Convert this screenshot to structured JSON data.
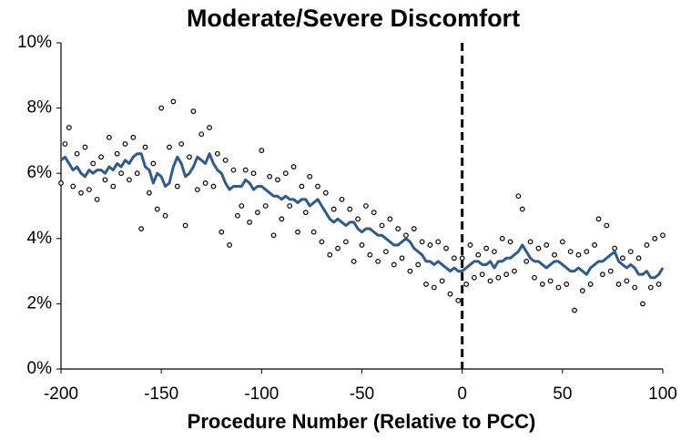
{
  "chart_data": {
    "type": "scatter",
    "title": "Moderate/Severe Discomfort",
    "x_label": "Procedure Number (Relative to PCC)",
    "xlim": [
      -200,
      100
    ],
    "xticks": [
      -200,
      -150,
      -100,
      -50,
      0,
      50,
      100
    ],
    "ylim": [
      0,
      10
    ],
    "yticks": [
      {
        "value": 0,
        "label": "0%"
      },
      {
        "value": 2,
        "label": "2%"
      },
      {
        "value": 4,
        "label": "4%"
      },
      {
        "value": 6,
        "label": "6%"
      },
      {
        "value": 8,
        "label": "8%"
      },
      {
        "value": 10,
        "label": "10%"
      }
    ],
    "grid": false,
    "reference_line_x": 0,
    "x": [
      -200,
      -198,
      -196,
      -194,
      -192,
      -190,
      -188,
      -186,
      -184,
      -182,
      -180,
      -178,
      -176,
      -174,
      -172,
      -170,
      -168,
      -166,
      -164,
      -162,
      -160,
      -158,
      -156,
      -154,
      -152,
      -150,
      -148,
      -146,
      -144,
      -142,
      -140,
      -138,
      -136,
      -134,
      -132,
      -130,
      -128,
      -126,
      -124,
      -122,
      -120,
      -118,
      -116,
      -114,
      -112,
      -110,
      -108,
      -106,
      -104,
      -102,
      -100,
      -98,
      -96,
      -94,
      -92,
      -90,
      -88,
      -86,
      -84,
      -82,
      -80,
      -78,
      -76,
      -74,
      -72,
      -70,
      -68,
      -66,
      -64,
      -62,
      -60,
      -58,
      -56,
      -54,
      -52,
      -50,
      -48,
      -46,
      -44,
      -42,
      -40,
      -38,
      -36,
      -34,
      -32,
      -30,
      -28,
      -26,
      -24,
      -22,
      -20,
      -18,
      -16,
      -14,
      -12,
      -10,
      -8,
      -6,
      -4,
      -2,
      0,
      2,
      4,
      6,
      8,
      10,
      12,
      14,
      16,
      18,
      20,
      22,
      24,
      26,
      28,
      30,
      32,
      34,
      36,
      38,
      40,
      42,
      44,
      46,
      48,
      50,
      52,
      54,
      56,
      58,
      60,
      62,
      64,
      66,
      68,
      70,
      72,
      74,
      76,
      78,
      80,
      82,
      84,
      86,
      88,
      90,
      92,
      94,
      96,
      98,
      100
    ],
    "series": [
      {
        "kind": "scatter",
        "color": "#000000",
        "values": [
          5.7,
          6.9,
          7.4,
          5.6,
          6.6,
          5.4,
          6.8,
          5.5,
          6.3,
          5.2,
          6.5,
          5.8,
          7.1,
          5.6,
          6.6,
          6.0,
          6.9,
          5.8,
          7.1,
          6.0,
          4.3,
          6.8,
          5.4,
          6.3,
          4.9,
          8.0,
          4.7,
          6.8,
          8.2,
          5.6,
          6.9,
          4.4,
          6.5,
          7.9,
          5.5,
          7.2,
          5.7,
          7.4,
          5.6,
          6.6,
          4.2,
          6.4,
          3.8,
          6.1,
          4.7,
          5.0,
          6.1,
          4.5,
          6.0,
          4.8,
          6.7,
          5.0,
          5.9,
          4.1,
          5.8,
          4.6,
          6.0,
          5.0,
          6.2,
          4.2,
          5.6,
          4.8,
          5.9,
          4.2,
          5.6,
          3.9,
          5.4,
          3.5,
          4.9,
          3.7,
          5.2,
          3.9,
          4.9,
          3.3,
          4.6,
          3.8,
          5.0,
          3.5,
          4.8,
          3.3,
          4.4,
          3.6,
          4.6,
          3.2,
          4.3,
          3.4,
          4.1,
          3.0,
          4.3,
          3.2,
          3.9,
          2.6,
          3.8,
          2.5,
          3.9,
          2.7,
          3.7,
          2.3,
          3.4,
          2.1,
          3.4,
          2.6,
          3.8,
          2.8,
          3.5,
          2.9,
          3.7,
          2.7,
          3.6,
          2.8,
          4.0,
          2.9,
          3.9,
          3.0,
          5.3,
          4.9,
          3.3,
          3.9,
          2.8,
          3.7,
          2.6,
          3.8,
          2.7,
          3.5,
          2.5,
          3.9,
          2.6,
          3.6,
          1.8,
          3.5,
          2.4,
          3.6,
          2.6,
          3.8,
          4.6,
          2.9,
          4.4,
          3.0,
          3.7,
          2.6,
          3.4,
          2.7,
          3.6,
          2.5,
          3.4,
          2.0,
          3.8,
          2.5,
          4.0,
          2.6,
          4.1
        ]
      },
      {
        "kind": "line",
        "color": "#2e5b8c",
        "values": [
          6.4,
          6.5,
          6.3,
          6.1,
          6.2,
          6.0,
          5.9,
          6.1,
          6.0,
          6.1,
          6.1,
          6.0,
          6.2,
          6.1,
          6.3,
          6.2,
          6.4,
          6.3,
          6.5,
          6.6,
          6.6,
          6.2,
          6.1,
          5.7,
          6.0,
          5.9,
          5.6,
          5.7,
          6.2,
          6.5,
          6.3,
          5.9,
          6.0,
          6.2,
          6.5,
          6.4,
          6.3,
          6.6,
          6.3,
          6.1,
          6.0,
          5.7,
          5.5,
          5.6,
          5.6,
          5.6,
          5.8,
          5.7,
          5.5,
          5.6,
          5.6,
          5.5,
          5.4,
          5.3,
          5.3,
          5.2,
          5.3,
          5.2,
          5.2,
          5.1,
          5.2,
          5.2,
          5.0,
          5.1,
          5.2,
          5.0,
          4.8,
          4.6,
          4.5,
          4.6,
          4.5,
          4.4,
          4.5,
          4.5,
          4.3,
          4.2,
          4.3,
          4.3,
          4.2,
          4.1,
          4.1,
          4.0,
          3.9,
          3.8,
          3.8,
          3.9,
          4.0,
          3.9,
          3.7,
          3.6,
          3.5,
          3.3,
          3.3,
          3.2,
          3.3,
          3.2,
          3.1,
          3.0,
          3.1,
          3.0,
          3.0,
          3.1,
          3.2,
          3.3,
          3.3,
          3.2,
          3.2,
          3.3,
          3.1,
          3.3,
          3.3,
          3.4,
          3.4,
          3.5,
          3.6,
          3.8,
          3.6,
          3.4,
          3.3,
          3.3,
          3.2,
          3.1,
          3.2,
          3.3,
          3.3,
          3.2,
          3.1,
          3.0,
          3.0,
          3.1,
          3.0,
          2.9,
          3.1,
          3.2,
          3.3,
          3.3,
          3.4,
          3.5,
          3.6,
          3.3,
          3.2,
          3.1,
          3.2,
          3.1,
          2.9,
          2.9,
          3.0,
          2.8,
          2.8,
          2.9,
          3.1
        ]
      }
    ]
  }
}
